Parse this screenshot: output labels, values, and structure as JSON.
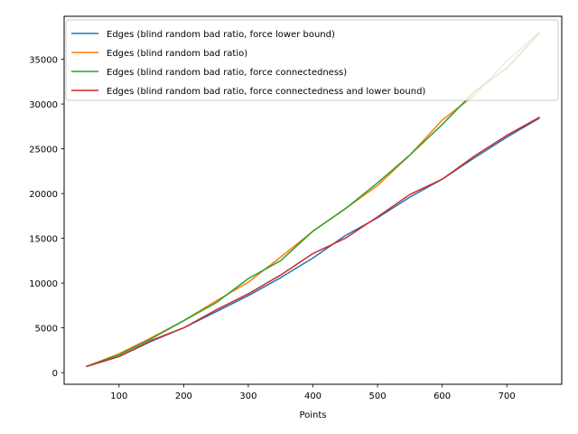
{
  "chart_data": {
    "type": "line",
    "title": "",
    "xlabel": "Points",
    "ylabel": "",
    "xlim": [
      15,
      785
    ],
    "ylim": [
      -1300,
      39800
    ],
    "xticks": [
      100,
      200,
      300,
      400,
      500,
      600,
      700
    ],
    "yticks": [
      0,
      5000,
      10000,
      15000,
      20000,
      25000,
      30000,
      35000
    ],
    "grid": false,
    "legend_position": "top-left",
    "series": [
      {
        "name": "Edges (blind random bad ratio, force lower bound)",
        "color": "#1f77b4",
        "x": [
          50,
          100,
          150,
          200,
          250,
          300,
          350,
          400,
          450,
          500,
          550,
          600,
          650,
          700,
          750
        ],
        "y": [
          700,
          1800,
          3500,
          5000,
          6800,
          8600,
          10600,
          12800,
          15300,
          17300,
          19600,
          21600,
          24000,
          26300,
          28400
        ]
      },
      {
        "name": "Edges (blind random bad ratio)",
        "color": "#ff7f0e",
        "x": [
          50,
          100,
          150,
          200,
          250,
          300,
          350,
          400,
          450,
          500,
          550,
          600,
          650,
          700,
          750
        ],
        "y": [
          700,
          2100,
          3900,
          5800,
          8000,
          10100,
          12900,
          15800,
          18300,
          20900,
          24300,
          28200,
          31000,
          34800,
          38000
        ]
      },
      {
        "name": "Edges (blind random bad ratio, force connectedness)",
        "color": "#2ca02c",
        "x": [
          50,
          100,
          150,
          200,
          250,
          300,
          350,
          400,
          450,
          500,
          550,
          600,
          650,
          700,
          750
        ],
        "y": [
          700,
          2000,
          3800,
          5800,
          7800,
          10500,
          12500,
          15800,
          18300,
          21200,
          24300,
          27700,
          31400,
          34000,
          37900
        ]
      },
      {
        "name": "Edges (blind random bad ratio, force connectedness and lower bound)",
        "color": "#d62728",
        "x": [
          50,
          100,
          150,
          200,
          250,
          300,
          350,
          400,
          450,
          500,
          550,
          600,
          650,
          700,
          750
        ],
        "y": [
          700,
          1800,
          3600,
          5000,
          7000,
          8800,
          10900,
          13300,
          15000,
          17400,
          19900,
          21600,
          24200,
          26500,
          28500
        ]
      }
    ]
  }
}
